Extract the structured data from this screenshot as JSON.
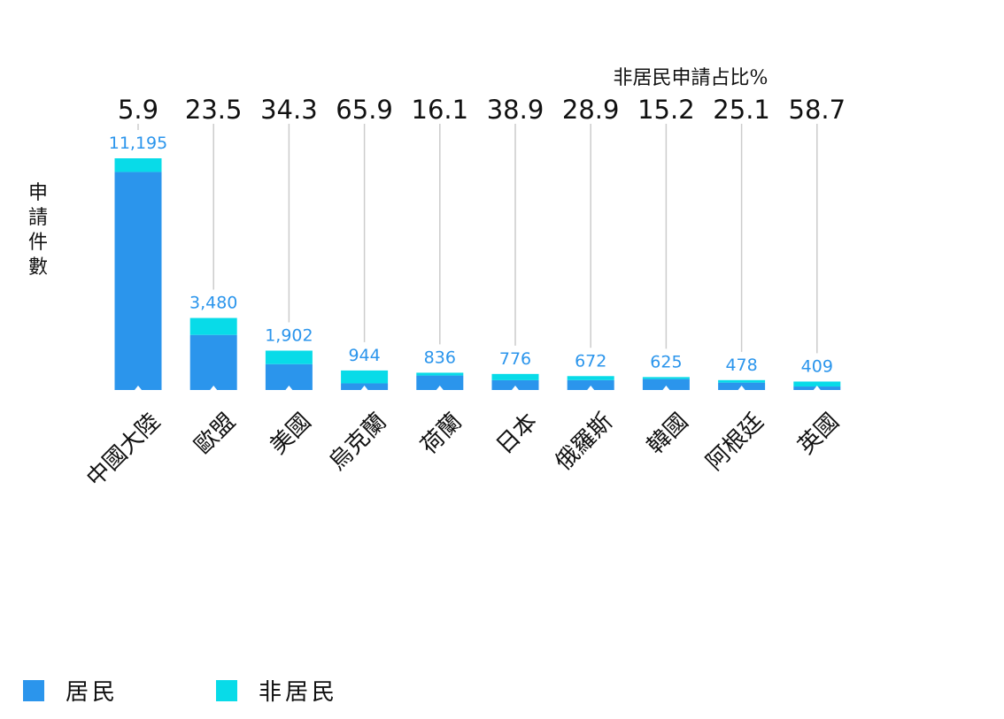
{
  "colors": {
    "resident": "#2b95ec",
    "non_resident": "#08dbe8",
    "value_label": "#2b95ec",
    "leader_line": "#cccccc",
    "text": "#111111"
  },
  "chart_data": {
    "type": "bar",
    "stacked": true,
    "ylabel": "申請件數",
    "share_title": "非居民申請占比%",
    "categories": [
      "中國大陸",
      "歐盟",
      "美國",
      "烏克蘭",
      "荷蘭",
      "日本",
      "俄羅斯",
      "韓國",
      "阿根廷",
      "英國"
    ],
    "totals": [
      11195,
      3480,
      1902,
      944,
      836,
      776,
      672,
      625,
      478,
      409
    ],
    "total_labels": [
      "11,195",
      "3,480",
      "1,902",
      "944",
      "836",
      "776",
      "672",
      "625",
      "478",
      "409"
    ],
    "non_resident_share_pct": [
      5.9,
      23.5,
      34.3,
      65.9,
      16.1,
      38.9,
      28.9,
      15.2,
      25.1,
      58.7
    ],
    "share_labels": [
      "5.9",
      "23.5",
      "34.3",
      "65.9",
      "16.1",
      "38.9",
      "28.9",
      "15.2",
      "25.1",
      "58.7"
    ],
    "series": [
      {
        "name": "居民",
        "values": [
          10535,
          2662,
          1250,
          322,
          701,
          474,
          478,
          530,
          358,
          169
        ]
      },
      {
        "name": "非居民",
        "values": [
          660,
          818,
          652,
          622,
          135,
          302,
          194,
          95,
          120,
          240
        ]
      }
    ],
    "ylim": [
      0,
      11195
    ],
    "grid": false,
    "legend_position": "bottom-left"
  }
}
